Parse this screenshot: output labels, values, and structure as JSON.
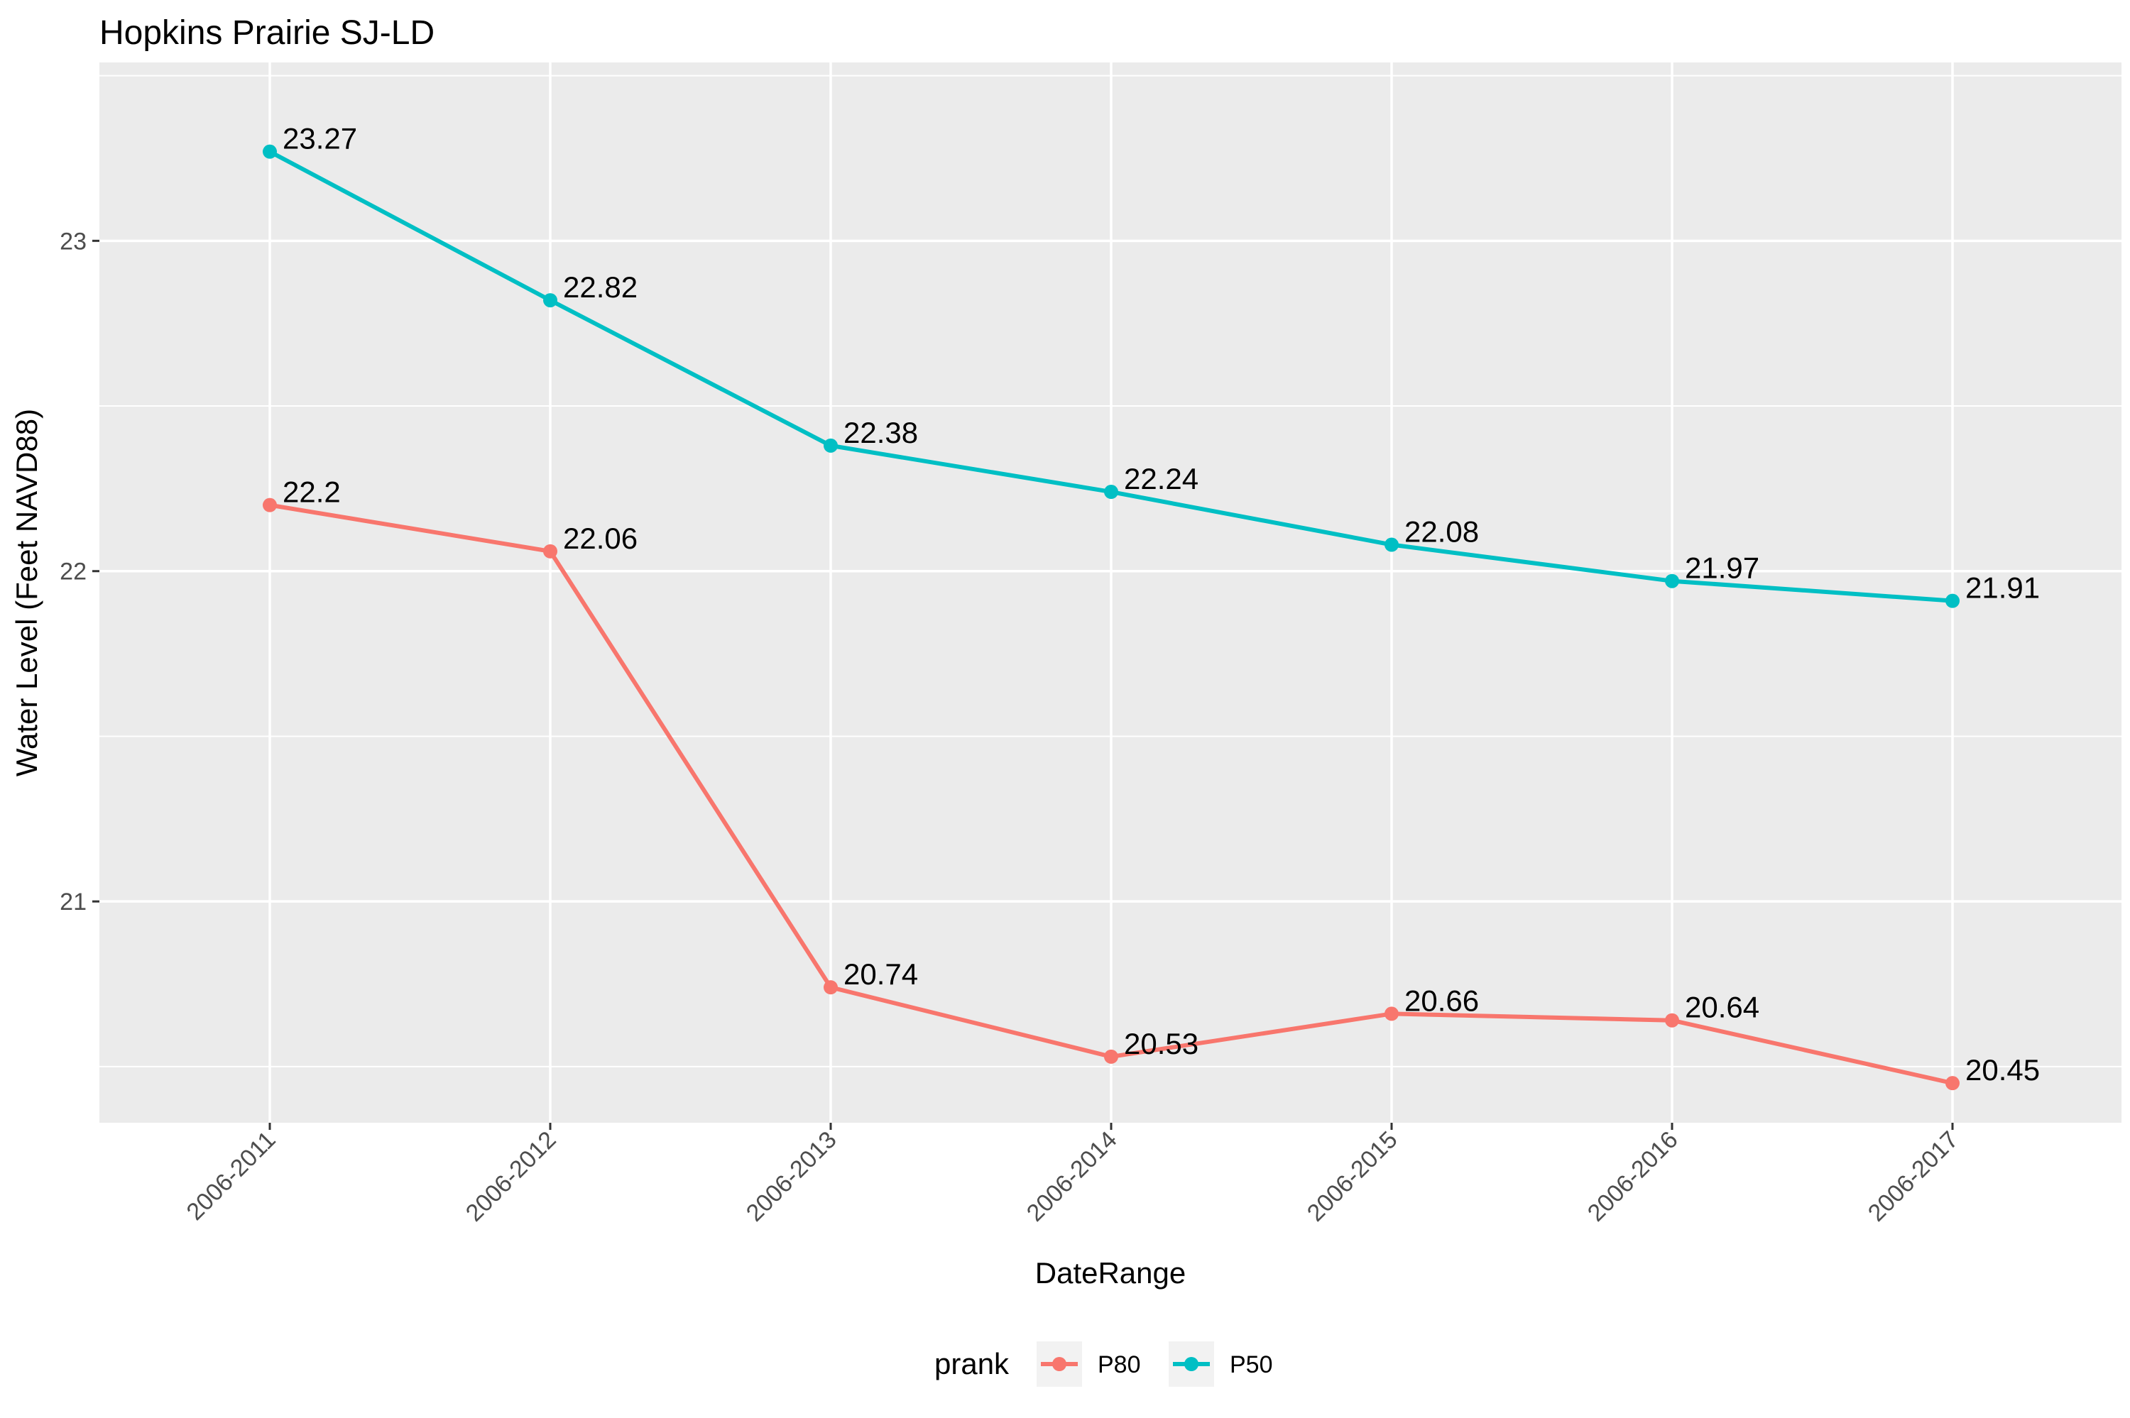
{
  "chart_data": {
    "type": "line",
    "title": "Hopkins Prairie SJ-LD",
    "xlabel": "DateRange",
    "ylabel": "Water Level (Feet NAVD88)",
    "categories": [
      "2006-2011",
      "2006-2012",
      "2006-2013",
      "2006-2014",
      "2006-2015",
      "2006-2016",
      "2006-2017"
    ],
    "yticks": [
      21,
      22,
      23
    ],
    "ylim": [
      20.33,
      23.54
    ],
    "grid": true,
    "legend": {
      "title": "prank",
      "position": "bottom"
    },
    "series": [
      {
        "name": "P80",
        "color": "#F8766D",
        "values": [
          22.2,
          22.06,
          20.74,
          20.53,
          20.66,
          20.64,
          20.45
        ],
        "labels": [
          "22.2",
          "22.06",
          "20.74",
          "20.53",
          "20.66",
          "20.64",
          "20.45"
        ]
      },
      {
        "name": "P50",
        "color": "#00BFC4",
        "values": [
          23.27,
          22.82,
          22.38,
          22.24,
          22.08,
          21.97,
          21.91
        ],
        "labels": [
          "23.27",
          "22.82",
          "22.38",
          "22.24",
          "22.08",
          "21.97",
          "21.91"
        ]
      }
    ]
  },
  "colors": {
    "panel_background": "#EBEBEB",
    "grid": "#FFFFFF",
    "tick": "#333333"
  }
}
